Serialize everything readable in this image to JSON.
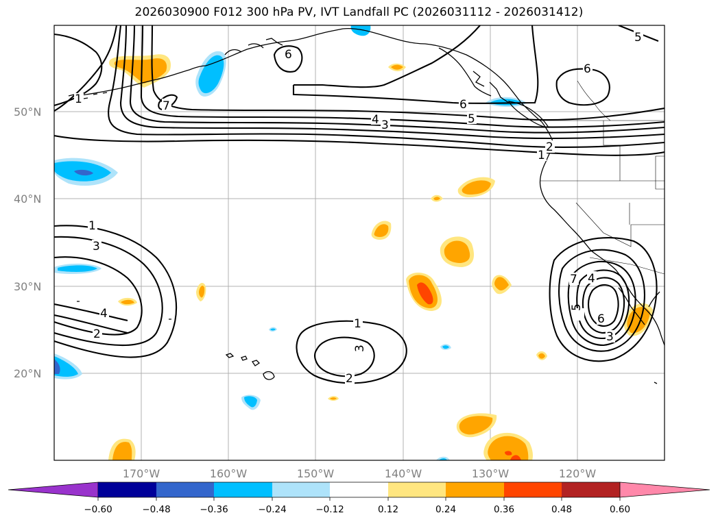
{
  "title": "2026030900 F012 300 hPa PV, IVT Landfall PC (2026031112 - 2026031412)",
  "lat_ticks": [
    "50°N",
    "40°N",
    "30°N",
    "20°N"
  ],
  "lon_ticks": [
    "170°W",
    "160°W",
    "150°W",
    "140°W",
    "130°W",
    "120°W"
  ],
  "colorbar": {
    "tick_labels": [
      "−0.60",
      "−0.48",
      "−0.36",
      "−0.24",
      "−0.12",
      "0.12",
      "0.24",
      "0.36",
      "0.48",
      "0.60"
    ],
    "boundaries": [
      -0.6,
      -0.48,
      -0.36,
      -0.24,
      -0.12,
      0.12,
      0.24,
      0.36,
      0.48,
      0.6
    ],
    "colors": [
      "#9933cc",
      "#000099",
      "#3366cc",
      "#00bfff",
      "#aee3fa",
      "#ffffff",
      "#ffe680",
      "#ffa500",
      "#ff4500",
      "#b22222",
      "#ff88aa"
    ]
  },
  "contour_labels": [
    "1",
    "7",
    "4",
    "3",
    "5",
    "6",
    "6",
    "6",
    "5",
    "2",
    "1",
    "1",
    "3",
    "4",
    "2",
    "1",
    "3",
    "2",
    "7",
    "4",
    "5",
    "6",
    "3"
  ]
}
